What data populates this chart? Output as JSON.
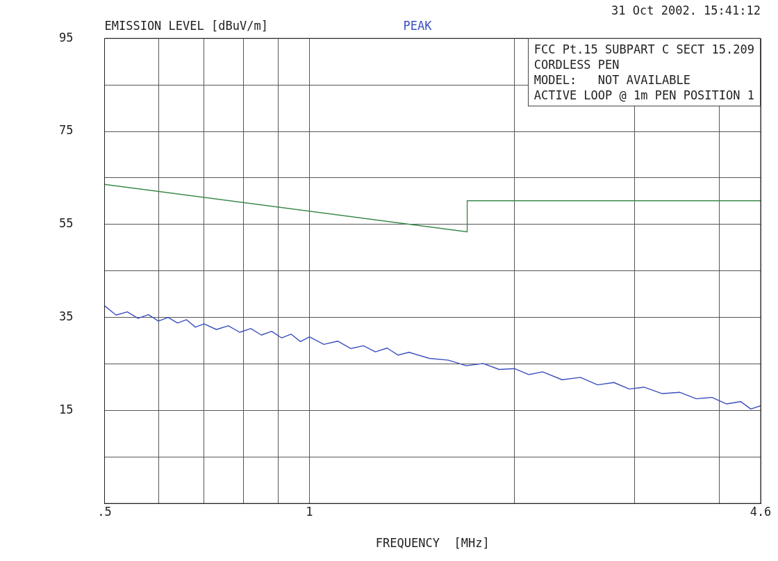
{
  "chart_data": {
    "type": "line",
    "ylabel": "EMISSION LEVEL [dBuV/m]",
    "xlabel": "FREQUENCY  [MHz]",
    "annotations": [
      "PEAK",
      "31 Oct 2002. 15:41:12",
      "FCC Pt.15 SUBPART C SECT 15.209",
      "CORDLESS PEN",
      "MODEL:   NOT AVAILABLE",
      "ACTIVE LOOP @ 1m PEN POSITION 1"
    ],
    "log": "x",
    "grid": true,
    "legend": false,
    "marker": "none",
    "line_style": "solid",
    "xlim": [
      0.5,
      4.6
    ],
    "xticks": [
      {
        "value": 0.5,
        "label": ".5"
      },
      {
        "value": 0.6,
        "label": null
      },
      {
        "value": 0.7,
        "label": null
      },
      {
        "value": 0.8,
        "label": null
      },
      {
        "value": 0.9,
        "label": null
      },
      1,
      {
        "value": 2,
        "label": null
      },
      {
        "value": 3,
        "label": null
      },
      {
        "value": 4,
        "label": null
      },
      4.6
    ],
    "ylim": [
      -5,
      95
    ],
    "yticks": [
      {
        "value": -5,
        "label": null
      },
      {
        "value": 5,
        "label": null
      },
      15,
      {
        "value": 25,
        "label": null
      },
      35,
      {
        "value": 45,
        "label": null
      },
      55,
      {
        "value": 65,
        "label": null
      },
      75,
      {
        "value": 85,
        "label": null
      },
      95
    ],
    "series": [
      {
        "color": "#3a4fc0",
        "x": [
          0.5,
          0.52,
          0.54,
          0.56,
          0.58,
          0.6,
          0.62,
          0.64,
          0.66,
          0.68,
          0.7,
          0.73,
          0.76,
          0.79,
          0.82,
          0.85,
          0.88,
          0.91,
          0.94,
          0.97,
          1.0,
          1.05,
          1.1,
          1.15,
          1.2,
          1.25,
          1.3,
          1.35,
          1.4,
          1.5,
          1.6,
          1.7,
          1.8,
          1.9,
          2.0,
          2.1,
          2.2,
          2.35,
          2.5,
          2.65,
          2.8,
          2.95,
          3.1,
          3.3,
          3.5,
          3.7,
          3.9,
          4.1,
          4.3,
          4.45,
          4.6
        ],
        "values": [
          37.5,
          35.5,
          36.2,
          34.8,
          35.6,
          34.2,
          35.0,
          33.8,
          34.5,
          32.9,
          33.6,
          32.4,
          33.2,
          31.8,
          32.6,
          31.2,
          32.0,
          30.6,
          31.4,
          29.8,
          30.8,
          29.2,
          29.9,
          28.3,
          28.9,
          27.6,
          28.4,
          26.9,
          27.5,
          26.2,
          25.8,
          24.6,
          25.1,
          23.8,
          24.0,
          22.7,
          23.3,
          21.6,
          22.1,
          20.5,
          21.0,
          19.6,
          20.0,
          18.6,
          18.9,
          17.5,
          17.8,
          16.4,
          16.9,
          15.3,
          16.0
        ]
      },
      {
        "color": "#3a8a4a",
        "x": [
          0.5,
          1.705,
          1.705,
          4.6
        ],
        "values": [
          63.6,
          53.4,
          60.1,
          60.1
        ]
      }
    ]
  }
}
